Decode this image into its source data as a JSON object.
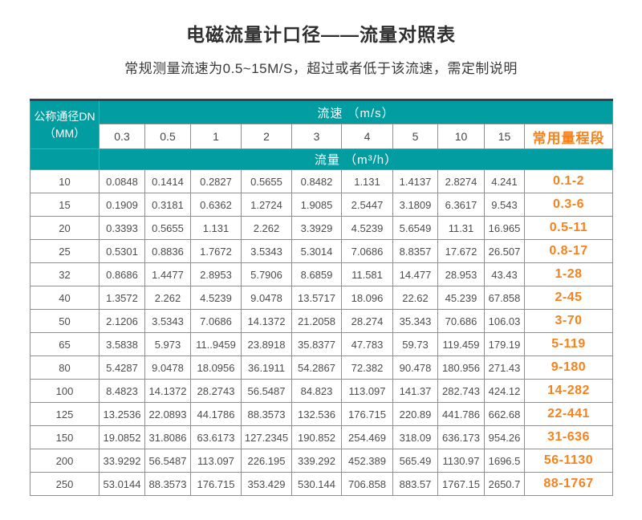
{
  "header": {
    "title": "电磁流量计口径——流量对照表",
    "subtitle": "常规测量流速为0.5~15M/S，超过或者低于该流速，需定制说明"
  },
  "table": {
    "dn_header_line1": "公称通径DN",
    "dn_header_line2": "（MM）",
    "velocity_header": "流速 （m/s）",
    "flow_header": "流量 （m³/h）",
    "range_header": "常用量程段",
    "speed_columns": [
      "0.3",
      "0.5",
      "1",
      "2",
      "3",
      "4",
      "5",
      "10",
      "15"
    ],
    "rows": [
      {
        "dn": "10",
        "values": [
          "0.0848",
          "0.1414",
          "0.2827",
          "0.5655",
          "0.8482",
          "1.131",
          "1.4137",
          "2.8274",
          "4.241"
        ],
        "range": "0.1-2"
      },
      {
        "dn": "15",
        "values": [
          "0.1909",
          "0.3181",
          "0.6362",
          "1.2724",
          "1.9085",
          "2.5447",
          "3.1809",
          "6.3617",
          "9.543"
        ],
        "range": "0.3-6"
      },
      {
        "dn": "20",
        "values": [
          "0.3393",
          "0.5655",
          "1.131",
          "2.262",
          "3.3929",
          "4.5239",
          "5.6549",
          "11.31",
          "16.965"
        ],
        "range": "0.5-11"
      },
      {
        "dn": "25",
        "values": [
          "0.5301",
          "0.8836",
          "1.7672",
          "3.5343",
          "5.3014",
          "7.0686",
          "8.8357",
          "17.672",
          "26.507"
        ],
        "range": "0.8-17"
      },
      {
        "dn": "32",
        "values": [
          "0.8686",
          "1.4477",
          "2.8953",
          "5.7906",
          "8.6859",
          "11.581",
          "14.477",
          "28.953",
          "43.43"
        ],
        "range": "1-28"
      },
      {
        "dn": "40",
        "values": [
          "1.3572",
          "2.262",
          "4.5239",
          "9.0478",
          "13.5717",
          "18.096",
          "22.62",
          "45.239",
          "67.858"
        ],
        "range": "2-45"
      },
      {
        "dn": "50",
        "values": [
          "2.1206",
          "3.5343",
          "7.0686",
          "14.1372",
          "21.2058",
          "28.274",
          "35.343",
          "70.686",
          "106.03"
        ],
        "range": "3-70"
      },
      {
        "dn": "65",
        "values": [
          "3.5838",
          "5.973",
          "11..9459",
          "23.8918",
          "35.8377",
          "47.783",
          "59.73",
          "119.459",
          "179.19"
        ],
        "range": "5-119"
      },
      {
        "dn": "80",
        "values": [
          "5.4287",
          "9.0478",
          "18.0956",
          "36.1911",
          "54.2867",
          "72.382",
          "90.478",
          "180.956",
          "271.43"
        ],
        "range": "9-180"
      },
      {
        "dn": "100",
        "values": [
          "8.4823",
          "14.1372",
          "28.2743",
          "56.5487",
          "84.823",
          "113.097",
          "141.37",
          "282.743",
          "424.12"
        ],
        "range": "14-282"
      },
      {
        "dn": "125",
        "values": [
          "13.2536",
          "22.0893",
          "44.1786",
          "88.3573",
          "132.536",
          "176.715",
          "220.89",
          "441.786",
          "662.68"
        ],
        "range": "22-441"
      },
      {
        "dn": "150",
        "values": [
          "19.0852",
          "31.8086",
          "63.6173",
          "127.2345",
          "190.852",
          "254.469",
          "318.09",
          "636.173",
          "954.26"
        ],
        "range": "31-636"
      },
      {
        "dn": "200",
        "values": [
          "33.9292",
          "56.5487",
          "113.097",
          "226.195",
          "339.292",
          "452.389",
          "565.49",
          "1130.97",
          "1696.5"
        ],
        "range": "56-1130"
      },
      {
        "dn": "250",
        "values": [
          "53.0144",
          "88.3573",
          "176.715",
          "353.429",
          "530.144",
          "706.858",
          "883.57",
          "1767.15",
          "2650.7"
        ],
        "range": "88-1767"
      }
    ]
  },
  "colors": {
    "teal_header": "#029da0",
    "orange_accent": "#f6821d",
    "table_top_border": "#3c434e",
    "cell_border": "#8f8f8f",
    "text_dark": "#2f2f2f",
    "cell_text": "#4d4d4d"
  }
}
